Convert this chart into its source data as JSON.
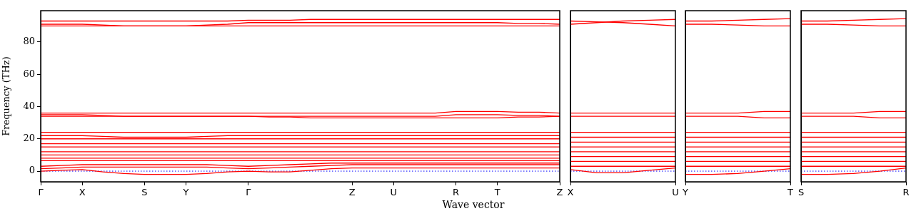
{
  "chart_data": [
    {
      "type": "line",
      "xlabel": "Wave vector",
      "ylabel": "Frequency (THz)",
      "categories": [
        "Γ",
        null,
        "X",
        null,
        null,
        "S",
        null,
        "Y",
        null,
        null,
        "Γ",
        null,
        null,
        null,
        null,
        "Z",
        null,
        "U",
        null,
        null,
        "R",
        null,
        "T",
        null,
        null,
        "Z"
      ],
      "ylim": [
        -6.6,
        99.4
      ],
      "yticks": [
        0,
        20,
        40,
        60,
        80
      ],
      "marker": "none",
      "line_style": "solid",
      "grid": false,
      "legend": false,
      "ref_lines": [
        {
          "axis": "y",
          "value": 0,
          "color": "#0000ff",
          "line_style": "dotted"
        }
      ],
      "series": [
        {
          "color": "#ff0000",
          "values": [
            0,
            0.5,
            1,
            -0.5,
            -1.5,
            -2,
            -2,
            -2,
            -1.5,
            -0.5,
            0,
            -0.5,
            -0.5,
            0.5,
            1.5,
            2,
            2,
            2,
            2,
            2,
            2,
            2,
            2,
            2,
            2,
            2
          ]
        },
        {
          "color": "#ff0000",
          "values": [
            1.5,
            2,
            2.5,
            2.5,
            2.5,
            2.5,
            2.5,
            2.5,
            2.5,
            2,
            1.5,
            2,
            2.5,
            3,
            3.5,
            4,
            4,
            4,
            4,
            4,
            4,
            4,
            4,
            4,
            4,
            4
          ]
        },
        {
          "color": "#ff0000",
          "values": [
            3,
            3.5,
            4,
            4,
            4,
            4,
            4,
            4,
            4,
            3.5,
            3,
            3.5,
            4,
            4.5,
            5,
            5,
            5,
            5,
            5,
            5,
            5,
            5,
            5,
            5,
            5,
            5
          ]
        },
        {
          "color": "#ff0000",
          "values": [
            6.5,
            6.5,
            6.5,
            6.5,
            6.5,
            6.5,
            6.5,
            6.5,
            6.5,
            6.5,
            6.5,
            6.5,
            6.5,
            6.5,
            6.5,
            6.5,
            6.5,
            6.5,
            6.5,
            6.5,
            6.5,
            6.5,
            6.5,
            6.5,
            6.5,
            6.5
          ]
        },
        {
          "color": "#ff0000",
          "values": [
            8,
            8,
            8,
            8,
            8,
            8,
            8,
            8,
            8,
            8,
            8,
            8,
            8,
            8,
            8,
            8,
            8,
            8,
            8,
            8,
            8,
            8,
            8,
            8,
            8,
            8
          ]
        },
        {
          "color": "#ff0000",
          "values": [
            10,
            10,
            10,
            10,
            10,
            10,
            10,
            10,
            10,
            10,
            10,
            10,
            10,
            10,
            10,
            10,
            10,
            10,
            10,
            10,
            10,
            10,
            10,
            10,
            10,
            10
          ]
        },
        {
          "color": "#ff0000",
          "values": [
            12,
            12,
            12,
            12,
            12,
            12,
            12,
            12,
            12,
            12,
            12,
            12,
            12,
            12,
            12,
            12,
            12,
            12,
            12,
            12,
            12,
            12,
            12,
            12,
            12,
            12
          ]
        },
        {
          "color": "#ff0000",
          "values": [
            15,
            15,
            15,
            15,
            15,
            15,
            15,
            15,
            15,
            15,
            15,
            15,
            15,
            15,
            15,
            15,
            15,
            15,
            15,
            15,
            15,
            15,
            15,
            15,
            15,
            15
          ]
        },
        {
          "color": "#ff0000",
          "values": [
            17,
            17,
            17,
            17,
            17,
            17,
            17,
            17,
            17,
            17,
            17,
            17,
            17,
            17,
            17,
            17,
            17,
            17,
            17,
            17,
            17,
            17,
            17,
            17,
            17,
            17
          ]
        },
        {
          "color": "#ff0000",
          "values": [
            20,
            20,
            20,
            20,
            20,
            20,
            20,
            20,
            20,
            20,
            20,
            20,
            20,
            20,
            20,
            20,
            20,
            20,
            20,
            20,
            20,
            20,
            20,
            20,
            20,
            20
          ]
        },
        {
          "color": "#ff0000",
          "values": [
            22,
            22,
            22,
            21.5,
            21,
            21,
            21,
            21,
            21.5,
            22,
            22,
            22,
            22,
            22,
            22,
            22,
            22,
            22,
            22,
            22,
            22,
            22,
            22,
            22,
            22,
            22
          ]
        },
        {
          "color": "#ff0000",
          "values": [
            24,
            24,
            24,
            24,
            24,
            24,
            24,
            24,
            24,
            24,
            24,
            24,
            24,
            24,
            24,
            24,
            24,
            24,
            24,
            24,
            24,
            24,
            24,
            24,
            24,
            24
          ]
        },
        {
          "color": "#ff0000",
          "values": [
            34,
            34,
            34,
            34,
            34,
            34,
            34,
            34,
            34,
            34,
            34,
            33.5,
            33.5,
            33,
            33,
            33,
            33,
            33,
            33,
            33,
            33,
            33,
            33,
            33.5,
            33.5,
            34
          ]
        },
        {
          "color": "#ff0000",
          "values": [
            35,
            35,
            35,
            34.5,
            34,
            34,
            34,
            34,
            34,
            34,
            34,
            34,
            34,
            34,
            34,
            34,
            34,
            34,
            34,
            34,
            35,
            35,
            35,
            34.5,
            34.5,
            34
          ]
        },
        {
          "color": "#ff0000",
          "values": [
            36,
            36,
            36,
            36,
            36,
            36,
            36,
            36,
            36,
            36,
            36,
            36,
            36,
            36,
            36,
            36,
            36,
            36,
            36,
            36,
            37,
            37,
            37,
            36.5,
            36.5,
            36
          ]
        },
        {
          "color": "#ff0000",
          "values": [
            90,
            90,
            90,
            90,
            90,
            90,
            90,
            90,
            90,
            90,
            90,
            90,
            90,
            90,
            90,
            90,
            90,
            90,
            90,
            90,
            90,
            90,
            90,
            90,
            90,
            90
          ]
        },
        {
          "color": "#ff0000",
          "values": [
            91,
            91,
            91,
            90.5,
            90,
            90,
            90,
            90,
            90.5,
            91,
            92,
            92,
            92,
            92,
            92,
            92,
            92,
            92,
            92,
            92,
            92,
            92,
            92,
            91.5,
            91.5,
            91
          ]
        },
        {
          "color": "#ff0000",
          "values": [
            93,
            93,
            93,
            93,
            93,
            93,
            93,
            93,
            93,
            93,
            93.5,
            93.5,
            93.5,
            94,
            94,
            94,
            94,
            94,
            94,
            94,
            94,
            94,
            94,
            94,
            94,
            94
          ]
        }
      ]
    },
    {
      "type": "line",
      "categories": [
        "X",
        null,
        null,
        null,
        "U"
      ],
      "ylim": [
        -6.6,
        99.4
      ],
      "tick_labels": "x",
      "marker": "none",
      "line_style": "solid",
      "grid": false,
      "legend": false,
      "ref_lines": [
        {
          "axis": "y",
          "value": 0,
          "color": "#0000ff",
          "line_style": "dotted"
        }
      ],
      "series": [
        {
          "color": "#ff0000",
          "values": [
            1,
            -1,
            -1,
            0.5,
            2
          ]
        },
        {
          "color": "#ff0000",
          "values": [
            3,
            3,
            3,
            3,
            3
          ]
        },
        {
          "color": "#ff0000",
          "values": [
            6,
            6,
            6,
            6,
            6
          ]
        },
        {
          "color": "#ff0000",
          "values": [
            9,
            9,
            9,
            9,
            9
          ]
        },
        {
          "color": "#ff0000",
          "values": [
            12,
            12,
            12,
            12,
            12
          ]
        },
        {
          "color": "#ff0000",
          "values": [
            15,
            15,
            15,
            15,
            15
          ]
        },
        {
          "color": "#ff0000",
          "values": [
            18,
            18,
            18,
            18,
            18
          ]
        },
        {
          "color": "#ff0000",
          "values": [
            21,
            21,
            21,
            21,
            21
          ]
        },
        {
          "color": "#ff0000",
          "values": [
            24,
            24,
            24,
            24,
            24
          ]
        },
        {
          "color": "#ff0000",
          "values": [
            34,
            34,
            34,
            34,
            34
          ]
        },
        {
          "color": "#ff0000",
          "values": [
            36,
            36,
            36,
            36,
            36
          ]
        },
        {
          "color": "#ff0000",
          "values": [
            93,
            92.5,
            92,
            91,
            90
          ]
        },
        {
          "color": "#ff0000",
          "values": [
            91,
            92,
            93,
            93.5,
            94
          ]
        }
      ]
    },
    {
      "type": "line",
      "categories": [
        "Y",
        null,
        null,
        null,
        "T"
      ],
      "ylim": [
        -6.6,
        99.4
      ],
      "tick_labels": "x",
      "marker": "none",
      "line_style": "solid",
      "grid": false,
      "legend": false,
      "ref_lines": [
        {
          "axis": "y",
          "value": 0,
          "color": "#0000ff",
          "line_style": "dotted"
        }
      ],
      "series": [
        {
          "color": "#ff0000",
          "values": [
            -2,
            -2,
            -1.5,
            0,
            1.5
          ]
        },
        {
          "color": "#ff0000",
          "values": [
            3,
            3,
            3,
            3,
            3
          ]
        },
        {
          "color": "#ff0000",
          "values": [
            6,
            6,
            6,
            6,
            6
          ]
        },
        {
          "color": "#ff0000",
          "values": [
            9,
            9,
            9,
            9,
            9
          ]
        },
        {
          "color": "#ff0000",
          "values": [
            12,
            12,
            12,
            12,
            12
          ]
        },
        {
          "color": "#ff0000",
          "values": [
            15,
            15,
            15,
            15,
            15
          ]
        },
        {
          "color": "#ff0000",
          "values": [
            18,
            18,
            18,
            18,
            18
          ]
        },
        {
          "color": "#ff0000",
          "values": [
            21,
            21,
            21,
            21,
            21
          ]
        },
        {
          "color": "#ff0000",
          "values": [
            24,
            24,
            24,
            24,
            24
          ]
        },
        {
          "color": "#ff0000",
          "values": [
            34,
            34,
            34,
            33,
            33
          ]
        },
        {
          "color": "#ff0000",
          "values": [
            36,
            36,
            36,
            37,
            37
          ]
        },
        {
          "color": "#ff0000",
          "values": [
            91,
            91,
            90.5,
            90,
            90
          ]
        },
        {
          "color": "#ff0000",
          "values": [
            93,
            93,
            93.5,
            94,
            94.5
          ]
        }
      ]
    },
    {
      "type": "line",
      "categories": [
        "S",
        null,
        null,
        null,
        "R"
      ],
      "ylim": [
        -6.6,
        99.4
      ],
      "tick_labels": "x",
      "marker": "none",
      "line_style": "solid",
      "grid": false,
      "legend": false,
      "ref_lines": [
        {
          "axis": "y",
          "value": 0,
          "color": "#0000ff",
          "line_style": "dotted"
        }
      ],
      "series": [
        {
          "color": "#ff0000",
          "values": [
            -2,
            -2,
            -1.5,
            0,
            2
          ]
        },
        {
          "color": "#ff0000",
          "values": [
            3,
            3,
            3,
            3,
            3
          ]
        },
        {
          "color": "#ff0000",
          "values": [
            6,
            6,
            6,
            6,
            6
          ]
        },
        {
          "color": "#ff0000",
          "values": [
            9,
            9,
            9,
            9,
            9
          ]
        },
        {
          "color": "#ff0000",
          "values": [
            12,
            12,
            12,
            12,
            12
          ]
        },
        {
          "color": "#ff0000",
          "values": [
            15,
            15,
            15,
            15,
            15
          ]
        },
        {
          "color": "#ff0000",
          "values": [
            18,
            18,
            18,
            18,
            18
          ]
        },
        {
          "color": "#ff0000",
          "values": [
            21,
            21,
            21,
            21,
            21
          ]
        },
        {
          "color": "#ff0000",
          "values": [
            24,
            24,
            24,
            24,
            24
          ]
        },
        {
          "color": "#ff0000",
          "values": [
            34,
            34,
            34,
            33,
            33
          ]
        },
        {
          "color": "#ff0000",
          "values": [
            36,
            36,
            36,
            37,
            37
          ]
        },
        {
          "color": "#ff0000",
          "values": [
            91,
            91,
            90.5,
            90,
            90
          ]
        },
        {
          "color": "#ff0000",
          "values": [
            93,
            93,
            93.5,
            94,
            94.5
          ]
        }
      ]
    }
  ]
}
